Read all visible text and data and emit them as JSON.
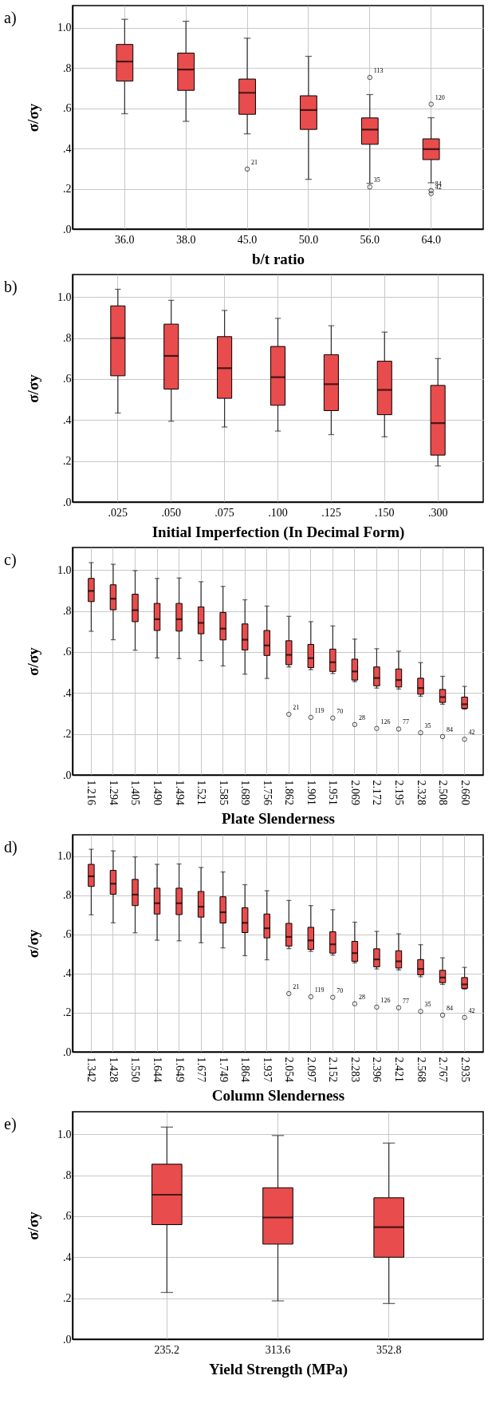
{
  "chart_data": [
    {
      "type": "box",
      "title": "a)",
      "xlabel": "b/t ratio",
      "ylabel": "σ/σy",
      "color": "#e94c4c",
      "grid": true,
      "categories": [
        "36.0",
        "38.0",
        "45.0",
        "50.0",
        "56.0",
        "64.0"
      ],
      "boxes": [
        {
          "low": 0.573,
          "q1": 0.735,
          "median": 0.832,
          "q3": 0.917,
          "high": 1.042
        },
        {
          "low": 0.535,
          "q1": 0.689,
          "median": 0.792,
          "q3": 0.874,
          "high": 1.032
        },
        {
          "low": 0.473,
          "q1": 0.57,
          "median": 0.677,
          "q3": 0.745,
          "high": 0.948,
          "outliers": [
            0.298
          ]
        },
        {
          "low": 0.247,
          "q1": 0.495,
          "median": 0.591,
          "q3": 0.662,
          "high": 0.858
        },
        {
          "low": 0.227,
          "q1": 0.421,
          "median": 0.494,
          "q3": 0.552,
          "high": 0.668,
          "outliers": [
            0.753,
            0.209
          ]
        },
        {
          "low": 0.23,
          "q1": 0.345,
          "median": 0.397,
          "q3": 0.448,
          "high": 0.553,
          "outliers": [
            0.62,
            0.191,
            0.176
          ]
        }
      ],
      "ylim": [
        0,
        1.11
      ],
      "yticks": [
        {
          "value": 0,
          "label": ".0"
        },
        {
          "value": 0.2,
          "label": ".2"
        },
        {
          "value": 0.4,
          "label": ".4"
        },
        {
          "value": 0.6,
          "label": ".6"
        },
        {
          "value": 0.8,
          "label": ".8"
        },
        {
          "value": 1,
          "label": "1.0"
        }
      ],
      "annotations": [
        "21",
        "113",
        "35",
        "120",
        "84",
        "42"
      ]
    },
    {
      "type": "box",
      "title": "b)",
      "xlabel": "Initial Imperfection (In Decimal Form)",
      "ylabel": "σ/σy",
      "color": "#e94c4c",
      "grid": true,
      "categories": [
        ".025",
        ".050",
        ".075",
        ".100",
        ".125",
        ".150",
        ".300"
      ],
      "boxes": [
        {
          "low": 0.434,
          "q1": 0.616,
          "median": 0.8,
          "q3": 0.957,
          "high": 1.038
        },
        {
          "low": 0.394,
          "q1": 0.551,
          "median": 0.713,
          "q3": 0.868,
          "high": 0.984
        },
        {
          "low": 0.366,
          "q1": 0.506,
          "median": 0.653,
          "q3": 0.807,
          "high": 0.935
        },
        {
          "low": 0.346,
          "q1": 0.472,
          "median": 0.609,
          "q3": 0.759,
          "high": 0.896
        },
        {
          "low": 0.329,
          "q1": 0.446,
          "median": 0.575,
          "q3": 0.719,
          "high": 0.86
        },
        {
          "low": 0.318,
          "q1": 0.426,
          "median": 0.547,
          "q3": 0.687,
          "high": 0.829
        },
        {
          "low": 0.176,
          "q1": 0.229,
          "median": 0.385,
          "q3": 0.569,
          "high": 0.7
        }
      ],
      "ylim": [
        0,
        1.11
      ],
      "yticks": [
        {
          "value": 0,
          "label": ".0"
        },
        {
          "value": 0.2,
          "label": ".2"
        },
        {
          "value": 0.4,
          "label": ".4"
        },
        {
          "value": 0.6,
          "label": ".6"
        },
        {
          "value": 0.8,
          "label": ".8"
        },
        {
          "value": 1,
          "label": "1.0"
        }
      ]
    },
    {
      "type": "box",
      "title": "c)",
      "xlabel": "Plate Slenderness",
      "ylabel": "σ/σy",
      "color": "#e94c4c",
      "grid": true,
      "categories": [
        "1.216",
        "1.294",
        "1.405",
        "1.490",
        "1.494",
        "1.521",
        "1.585",
        "1.689",
        "1.756",
        "1.862",
        "1.901",
        "1.951",
        "2.069",
        "2.172",
        "2.195",
        "2.328",
        "2.508",
        "2.660"
      ],
      "boxes": [
        {
          "low": 0.701,
          "q1": 0.846,
          "median": 0.898,
          "q3": 0.959,
          "high": 1.036
        },
        {
          "low": 0.66,
          "q1": 0.806,
          "median": 0.86,
          "q3": 0.928,
          "high": 1.028
        },
        {
          "low": 0.609,
          "q1": 0.748,
          "median": 0.804,
          "q3": 0.882,
          "high": 0.997
        },
        {
          "low": 0.571,
          "q1": 0.705,
          "median": 0.76,
          "q3": 0.837,
          "high": 0.959
        },
        {
          "low": 0.568,
          "q1": 0.702,
          "median": 0.76,
          "q3": 0.837,
          "high": 0.961
        },
        {
          "low": 0.558,
          "q1": 0.689,
          "median": 0.742,
          "q3": 0.82,
          "high": 0.943
        },
        {
          "low": 0.532,
          "q1": 0.659,
          "median": 0.714,
          "q3": 0.793,
          "high": 0.92
        },
        {
          "low": 0.492,
          "q1": 0.61,
          "median": 0.66,
          "q3": 0.737,
          "high": 0.855
        },
        {
          "low": 0.471,
          "q1": 0.583,
          "median": 0.632,
          "q3": 0.705,
          "high": 0.824
        },
        {
          "low": 0.527,
          "q1": 0.538,
          "median": 0.586,
          "q3": 0.655,
          "high": 0.774,
          "outliers": [
            0.296
          ]
        },
        {
          "low": 0.514,
          "q1": 0.524,
          "median": 0.57,
          "q3": 0.637,
          "high": 0.748,
          "outliers": [
            0.281
          ]
        },
        {
          "low": 0.495,
          "q1": 0.505,
          "median": 0.55,
          "q3": 0.614,
          "high": 0.727,
          "outliers": [
            0.278
          ]
        },
        {
          "low": 0.455,
          "q1": 0.463,
          "median": 0.505,
          "q3": 0.565,
          "high": 0.663,
          "outliers": [
            0.246
          ]
        },
        {
          "low": 0.424,
          "q1": 0.435,
          "median": 0.473,
          "q3": 0.527,
          "high": 0.616,
          "outliers": [
            0.227
          ]
        },
        {
          "low": 0.419,
          "q1": 0.429,
          "median": 0.463,
          "q3": 0.517,
          "high": 0.604,
          "outliers": [
            0.224
          ]
        },
        {
          "low": 0.384,
          "q1": 0.394,
          "median": 0.424,
          "q3": 0.472,
          "high": 0.548,
          "outliers": [
            0.206
          ]
        },
        {
          "low": 0.345,
          "q1": 0.354,
          "median": 0.38,
          "q3": 0.417,
          "high": 0.481,
          "outliers": [
            0.187
          ]
        },
        {
          "low": 0.321,
          "q1": 0.325,
          "median": 0.345,
          "q3": 0.38,
          "high": 0.432,
          "outliers": [
            0.174
          ]
        }
      ],
      "ylim": [
        0,
        1.11
      ],
      "yticks": [
        {
          "value": 0,
          "label": ".0"
        },
        {
          "value": 0.2,
          "label": ".2"
        },
        {
          "value": 0.4,
          "label": ".4"
        },
        {
          "value": 0.6,
          "label": ".6"
        },
        {
          "value": 0.8,
          "label": ".8"
        },
        {
          "value": 1,
          "label": "1.0"
        }
      ],
      "annotations": [
        "21",
        "119",
        "70",
        "28",
        "126",
        "77",
        "35",
        "84",
        "42"
      ]
    },
    {
      "type": "box",
      "title": "d)",
      "xlabel": "Column Slenderness",
      "ylabel": "σ/σy",
      "color": "#e94c4c",
      "grid": true,
      "categories": [
        "1.342",
        "1.428",
        "1.550",
        "1.644",
        "1.649",
        "1.677",
        "1.749",
        "1.864",
        "1.937",
        "2.054",
        "2.097",
        "2.152",
        "2.283",
        "2.396",
        "2.421",
        "2.568",
        "2.767",
        "2.935"
      ],
      "boxes": [
        {
          "low": 0.701,
          "q1": 0.846,
          "median": 0.898,
          "q3": 0.959,
          "high": 1.036
        },
        {
          "low": 0.66,
          "q1": 0.806,
          "median": 0.86,
          "q3": 0.928,
          "high": 1.028
        },
        {
          "low": 0.609,
          "q1": 0.748,
          "median": 0.804,
          "q3": 0.882,
          "high": 0.997
        },
        {
          "low": 0.571,
          "q1": 0.705,
          "median": 0.76,
          "q3": 0.837,
          "high": 0.959
        },
        {
          "low": 0.568,
          "q1": 0.702,
          "median": 0.76,
          "q3": 0.837,
          "high": 0.961
        },
        {
          "low": 0.558,
          "q1": 0.689,
          "median": 0.742,
          "q3": 0.82,
          "high": 0.943
        },
        {
          "low": 0.532,
          "q1": 0.659,
          "median": 0.714,
          "q3": 0.793,
          "high": 0.92
        },
        {
          "low": 0.492,
          "q1": 0.61,
          "median": 0.66,
          "q3": 0.737,
          "high": 0.855
        },
        {
          "low": 0.471,
          "q1": 0.583,
          "median": 0.632,
          "q3": 0.705,
          "high": 0.824
        },
        {
          "low": 0.528,
          "q1": 0.541,
          "median": 0.588,
          "q3": 0.657,
          "high": 0.774,
          "outliers": [
            0.298
          ]
        },
        {
          "low": 0.514,
          "q1": 0.524,
          "median": 0.57,
          "q3": 0.637,
          "high": 0.748,
          "outliers": [
            0.282
          ]
        },
        {
          "low": 0.495,
          "q1": 0.505,
          "median": 0.55,
          "q3": 0.614,
          "high": 0.727,
          "outliers": [
            0.279
          ]
        },
        {
          "low": 0.455,
          "q1": 0.463,
          "median": 0.505,
          "q3": 0.565,
          "high": 0.663,
          "outliers": [
            0.246
          ]
        },
        {
          "low": 0.424,
          "q1": 0.435,
          "median": 0.473,
          "q3": 0.527,
          "high": 0.616,
          "outliers": [
            0.229
          ]
        },
        {
          "low": 0.419,
          "q1": 0.429,
          "median": 0.463,
          "q3": 0.517,
          "high": 0.604,
          "outliers": [
            0.226
          ]
        },
        {
          "low": 0.384,
          "q1": 0.394,
          "median": 0.424,
          "q3": 0.472,
          "high": 0.548,
          "outliers": [
            0.207
          ]
        },
        {
          "low": 0.345,
          "q1": 0.354,
          "median": 0.38,
          "q3": 0.417,
          "high": 0.481,
          "outliers": [
            0.188
          ]
        },
        {
          "low": 0.321,
          "q1": 0.325,
          "median": 0.345,
          "q3": 0.38,
          "high": 0.432,
          "outliers": [
            0.176
          ]
        }
      ],
      "ylim": [
        0,
        1.11
      ],
      "yticks": [
        {
          "value": 0,
          "label": ".0"
        },
        {
          "value": 0.2,
          "label": ".2"
        },
        {
          "value": 0.4,
          "label": ".4"
        },
        {
          "value": 0.6,
          "label": ".6"
        },
        {
          "value": 0.8,
          "label": ".8"
        },
        {
          "value": 1,
          "label": "1.0"
        }
      ],
      "annotations": [
        "21",
        "119",
        "70",
        "28",
        "126",
        "77",
        "35",
        "84",
        "42"
      ]
    },
    {
      "type": "box",
      "title": "e)",
      "xlabel": "Yield Strength (MPa)",
      "ylabel": "σ/σy",
      "color": "#e94c4c",
      "grid": true,
      "categories": [
        "235.2",
        "313.6",
        "352.8"
      ],
      "boxes": [
        {
          "low": 0.228,
          "q1": 0.559,
          "median": 0.705,
          "q3": 0.854,
          "high": 1.035
        },
        {
          "low": 0.187,
          "q1": 0.464,
          "median": 0.594,
          "q3": 0.739,
          "high": 0.994
        },
        {
          "low": 0.174,
          "q1": 0.4,
          "median": 0.547,
          "q3": 0.69,
          "high": 0.957
        }
      ],
      "ylim": [
        0,
        1.11
      ],
      "yticks": [
        {
          "value": 0,
          "label": ".0"
        },
        {
          "value": 0.2,
          "label": ".2"
        },
        {
          "value": 0.4,
          "label": ".4"
        },
        {
          "value": 0.6,
          "label": ".6"
        },
        {
          "value": 0.8,
          "label": ".8"
        },
        {
          "value": 1,
          "label": "1.0"
        }
      ]
    }
  ]
}
